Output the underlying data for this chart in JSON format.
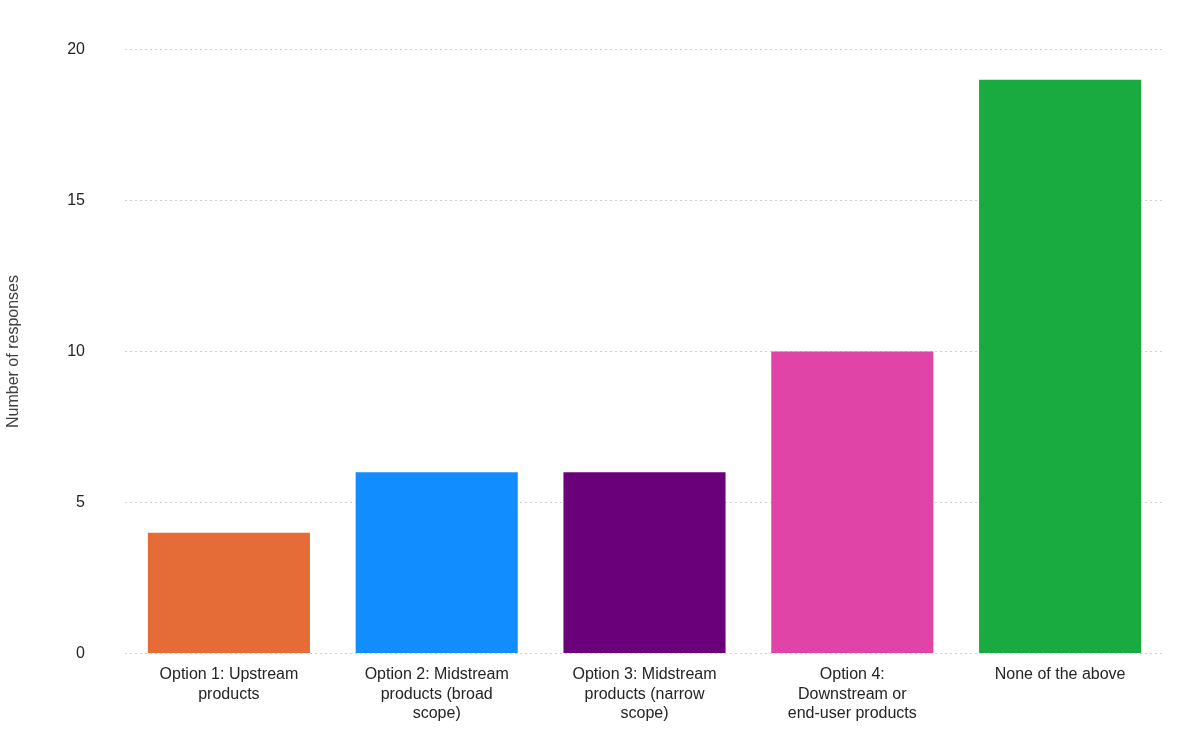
{
  "chart_data": {
    "type": "bar",
    "ylabel": "Number of responses",
    "categories": [
      "Option 1: Upstream products",
      "Option 2: Midstream products (broad scope)",
      "Option 3: Midstream products (narrow scope)",
      "Option 4: Downstream or end-user products",
      "None of the above"
    ],
    "values": [
      4,
      6,
      6,
      10,
      19
    ],
    "colors": [
      "#e66c37",
      "#118dff",
      "#6b007b",
      "#e044a7",
      "#1aab40"
    ],
    "ylim": [
      0,
      20
    ],
    "yticks": [
      0,
      5,
      10,
      15,
      20
    ],
    "grid": "y",
    "legend": false
  }
}
